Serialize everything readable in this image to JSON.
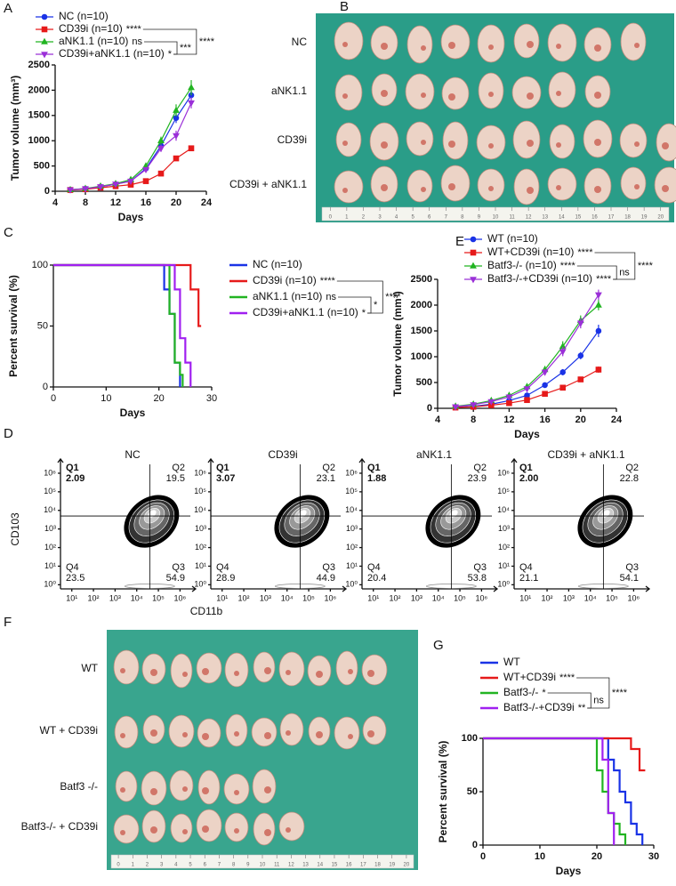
{
  "chart_data": [
    {
      "label": "A",
      "type": "line",
      "xlabel": "Days",
      "ylabel": "Tumor volume (mm³)",
      "x": [
        6,
        8,
        10,
        12,
        14,
        16,
        18,
        20,
        22
      ],
      "xlim": [
        4,
        24
      ],
      "xticks": [
        4,
        8,
        12,
        16,
        20,
        24
      ],
      "ylim": [
        0,
        2500
      ],
      "yticks": [
        0,
        500,
        1000,
        1500,
        2000,
        2500
      ],
      "series": [
        {
          "name": "NC (n=10)",
          "color": "#1a33e6",
          "marker": "circle",
          "values": [
            30,
            50,
            90,
            140,
            200,
            450,
            900,
            1450,
            1900
          ],
          "errors": [
            5,
            8,
            10,
            15,
            20,
            40,
            70,
            100,
            90
          ]
        },
        {
          "name": "CD39i (n=10)",
          "significance": "****",
          "color": "#e61a1a",
          "marker": "square",
          "values": [
            25,
            40,
            70,
            100,
            130,
            200,
            350,
            650,
            850
          ],
          "errors": [
            4,
            6,
            8,
            10,
            15,
            25,
            30,
            50,
            50
          ]
        },
        {
          "name": "aNK1.1 (n=10)",
          "significance": "ns",
          "color": "#22b422",
          "marker": "triangle",
          "values": [
            30,
            55,
            100,
            150,
            230,
            500,
            1000,
            1600,
            2050
          ],
          "errors": [
            5,
            8,
            12,
            18,
            25,
            50,
            80,
            120,
            150
          ]
        },
        {
          "name": "CD39i+aNK1.1 (n=10)",
          "significance": "*",
          "color": "#9b30d8",
          "marker": "triangle-down",
          "values": [
            28,
            50,
            90,
            140,
            200,
            430,
            850,
            1100,
            1750
          ],
          "errors": [
            5,
            8,
            10,
            15,
            20,
            45,
            70,
            100,
            110
          ]
        }
      ],
      "bracket_labels": [
        "***",
        "****"
      ]
    },
    {
      "label": "C",
      "type": "step",
      "xlabel": "Days",
      "ylabel": "Percent survival (%)",
      "xlim": [
        0,
        30
      ],
      "xticks": [
        0,
        10,
        20,
        30
      ],
      "ylim": [
        0,
        100
      ],
      "yticks": [
        0,
        50,
        100
      ],
      "series": [
        {
          "name": "NC (n=10)",
          "color": "#1a33e6",
          "x": [
            0,
            21,
            22,
            23,
            24
          ],
          "values": [
            100,
            80,
            60,
            20,
            0
          ]
        },
        {
          "name": "CD39i (n=10)",
          "significance": "****",
          "color": "#e61a1a",
          "x": [
            0,
            26,
            27.5,
            28
          ],
          "values": [
            100,
            80,
            50,
            50
          ]
        },
        {
          "name": "aNK1.1 (n=10)",
          "significance": "ns",
          "color": "#22b422",
          "x": [
            0,
            22,
            23,
            24,
            24.5
          ],
          "values": [
            100,
            60,
            20,
            10,
            0
          ]
        },
        {
          "name": "CD39i+aNK1.1 (n=10)",
          "significance": "*",
          "color": "#a020f0",
          "x": [
            0,
            23,
            24,
            25,
            26
          ],
          "values": [
            100,
            80,
            40,
            20,
            0
          ]
        }
      ],
      "bracket_labels": [
        "*",
        "****"
      ]
    },
    {
      "label": "E",
      "type": "line",
      "xlabel": "Days",
      "ylabel": "Tumor volume (mm³)",
      "x": [
        6,
        8,
        10,
        12,
        14,
        16,
        18,
        20,
        22
      ],
      "xlim": [
        4,
        24
      ],
      "xticks": [
        4,
        8,
        12,
        16,
        20,
        24
      ],
      "ylim": [
        0,
        2500
      ],
      "yticks": [
        0,
        500,
        1000,
        1500,
        2000,
        2500
      ],
      "series": [
        {
          "name": "WT (n=10)",
          "color": "#1a33e6",
          "marker": "circle",
          "values": [
            20,
            40,
            80,
            150,
            250,
            450,
            700,
            1020,
            1500
          ],
          "errors": [
            5,
            8,
            10,
            15,
            25,
            40,
            60,
            70,
            120
          ]
        },
        {
          "name": "WT+CD39i (n=10)",
          "significance": "****",
          "color": "#e61a1a",
          "marker": "square",
          "values": [
            15,
            30,
            60,
            100,
            160,
            280,
            400,
            560,
            750
          ],
          "errors": [
            4,
            6,
            8,
            10,
            15,
            25,
            30,
            40,
            60
          ]
        },
        {
          "name": "Batf3-/- (n=10)",
          "significance": "****",
          "color": "#22b422",
          "marker": "triangle",
          "values": [
            40,
            80,
            150,
            250,
            420,
            750,
            1200,
            1700,
            2000
          ],
          "errors": [
            8,
            12,
            20,
            30,
            40,
            70,
            100,
            100,
            100
          ]
        },
        {
          "name": "Batf3-/-+CD39i (n=10)",
          "significance": "****",
          "color": "#9b30d8",
          "marker": "triangle-down",
          "values": [
            30,
            70,
            130,
            220,
            380,
            700,
            1100,
            1650,
            2200
          ],
          "errors": [
            6,
            10,
            18,
            25,
            35,
            60,
            90,
            100,
            100
          ]
        }
      ],
      "bracket_labels": [
        "ns",
        "****"
      ]
    },
    {
      "label": "D",
      "type": "flow",
      "xlabel": "CD11b",
      "ylabel": "CD103",
      "log_scale": true,
      "xlim": [
        3,
        3000000
      ],
      "ylim": [
        0.6,
        3000000
      ],
      "gate_x": 40000,
      "gate_y": 5000,
      "xticks": [
        {
          "value": 10,
          "label": "10¹"
        },
        {
          "value": 100,
          "label": "10²"
        },
        {
          "value": 1000,
          "label": "10³"
        },
        {
          "value": 10000,
          "label": "10⁴"
        },
        {
          "value": 100000,
          "label": "10⁵"
        },
        {
          "value": 1000000,
          "label": "10⁶"
        }
      ],
      "yticks": [
        {
          "value": 1,
          "label": "10⁰"
        },
        {
          "value": 10,
          "label": "10¹"
        },
        {
          "value": 100,
          "label": "10²"
        },
        {
          "value": 1000,
          "label": "10³"
        },
        {
          "value": 10000,
          "label": "10⁴"
        },
        {
          "value": 100000,
          "label": "10⁵"
        },
        {
          "value": 1000000,
          "label": "10⁶"
        }
      ],
      "subplots": [
        {
          "title": "NC",
          "quadrants": [
            {
              "name": "Q1",
              "value": 2.09
            },
            {
              "name": "Q2",
              "value": 19.5
            },
            {
              "name": "Q3",
              "value": 54.9
            },
            {
              "name": "Q4",
              "value": 23.5
            }
          ]
        },
        {
          "title": "CD39i",
          "quadrants": [
            {
              "name": "Q1",
              "value": 3.07
            },
            {
              "name": "Q2",
              "value": 23.1
            },
            {
              "name": "Q3",
              "value": 44.9
            },
            {
              "name": "Q4",
              "value": 28.9
            }
          ]
        },
        {
          "title": "aNK1.1",
          "quadrants": [
            {
              "name": "Q1",
              "value": 1.88
            },
            {
              "name": "Q2",
              "value": 23.9
            },
            {
              "name": "Q3",
              "value": 53.8
            },
            {
              "name": "Q4",
              "value": 20.4
            }
          ]
        },
        {
          "title": "CD39i + aNK1.1",
          "quadrants": [
            {
              "name": "Q1",
              "value": {
                "value": 2,
                "label": "2.00"
              }
            },
            {
              "name": "Q2",
              "value": 22.8
            },
            {
              "name": "Q3",
              "value": 54.1
            },
            {
              "name": "Q4",
              "value": 21.1
            }
          ]
        }
      ]
    },
    {
      "label": "G",
      "type": "step",
      "xlabel": "Days",
      "ylabel": "Percent survival (%)",
      "xlim": [
        0,
        30
      ],
      "xticks": [
        0,
        10,
        20,
        30
      ],
      "ylim": [
        0,
        100
      ],
      "yticks": [
        0,
        50,
        100
      ],
      "series": [
        {
          "name": "WT",
          "color": "#1a33e6",
          "x": [
            0,
            22,
            23,
            24,
            25,
            26,
            27,
            28
          ],
          "values": [
            100,
            80,
            70,
            50,
            40,
            20,
            10,
            0
          ]
        },
        {
          "name": "WT+CD39i",
          "significance": "****",
          "color": "#e61a1a",
          "x": [
            0,
            26,
            27.5,
            28.5
          ],
          "values": [
            100,
            90,
            70,
            70
          ]
        },
        {
          "name": "Batf3-/-",
          "significance": "*",
          "color": "#22b422",
          "x": [
            0,
            20,
            21,
            22,
            23,
            24,
            25
          ],
          "values": [
            100,
            70,
            50,
            30,
            20,
            10,
            0
          ]
        },
        {
          "name": "Batf3-/-+CD39i",
          "significance": "**",
          "color": "#a020f0",
          "x": [
            0,
            21,
            22,
            23
          ],
          "values": [
            100,
            80,
            30,
            0
          ]
        }
      ],
      "bracket_labels": [
        "ns",
        "****"
      ]
    }
  ],
  "photos": [
    {
      "label": "B",
      "row_labels": [
        "NC",
        "aNK1.1",
        "CD39i",
        "CD39i + aNK1.1"
      ],
      "tumor_counts": [
        9,
        8,
        10,
        10
      ],
      "ruler_labels": [
        0,
        1,
        2,
        3,
        4,
        5,
        6,
        7,
        8,
        9,
        10,
        11,
        12,
        13,
        14,
        15,
        16,
        17,
        18,
        19,
        20
      ]
    },
    {
      "label": "F",
      "row_labels": [
        "WT",
        "WT + CD39i",
        "Batf3 -/-",
        "Batf3-/- + CD39i"
      ],
      "tumor_counts": [
        10,
        10,
        6,
        7
      ],
      "ruler_labels": [
        0,
        1,
        2,
        3,
        4,
        5,
        6,
        7,
        8,
        9,
        10,
        11,
        12,
        13,
        14,
        15,
        16,
        17,
        18,
        19,
        20
      ]
    }
  ]
}
